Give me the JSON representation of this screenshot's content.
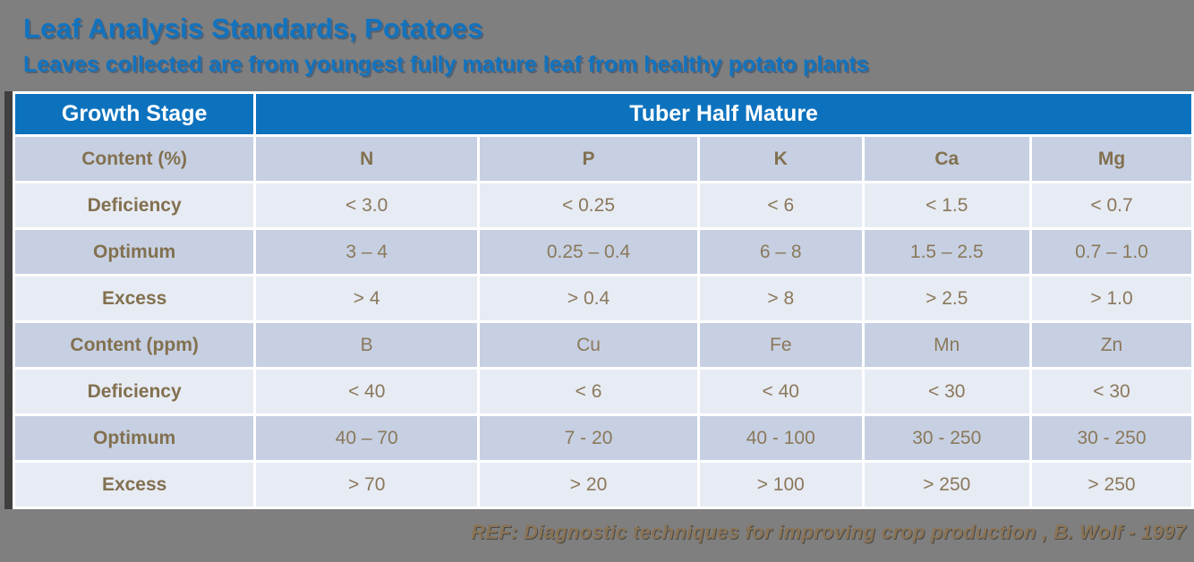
{
  "page": {
    "title": "Leaf Analysis Standards, Potatoes",
    "subtitle": "Leaves collected are from youngest fully mature leaf from healthy potato plants",
    "reference": "REF: Diagnostic techniques for improving crop production , B. Wolf - 1997"
  },
  "colors": {
    "background_gray": "#7F7F7F",
    "title_blue": "#1173BF",
    "header_blue": "#0D72BE",
    "row_medium": "#C7D0E2",
    "row_light": "#E7EBF4",
    "text_brown": "#8A785B",
    "header_text_white": "#FFFFFF",
    "table_shadow_dark": "#3F3F3F"
  },
  "table": {
    "header": {
      "growth_stage": "Growth Stage",
      "span_title": "Tuber Half Mature"
    },
    "rows": [
      {
        "label": "Content (%)",
        "values": [
          "N",
          "P",
          "K",
          "Ca",
          "Mg"
        ]
      },
      {
        "label": "Deficiency",
        "values": [
          "< 3.0",
          "< 0.25",
          "< 6",
          "< 1.5",
          "< 0.7"
        ]
      },
      {
        "label": "Optimum",
        "values": [
          "3 – 4",
          "0.25 – 0.4",
          "6 – 8",
          "1.5 – 2.5",
          "0.7 – 1.0"
        ]
      },
      {
        "label": "Excess",
        "values": [
          "> 4",
          "> 0.4",
          "> 8",
          "> 2.5",
          "> 1.0"
        ]
      },
      {
        "label": "Content (ppm)",
        "values": [
          "B",
          "Cu",
          "Fe",
          "Mn",
          "Zn"
        ]
      },
      {
        "label": "Deficiency",
        "values": [
          "< 40",
          "< 6",
          "< 40",
          "< 30",
          "< 30"
        ]
      },
      {
        "label": "Optimum",
        "values": [
          "40 – 70",
          "7 - 20",
          "40 - 100",
          "30 - 250",
          "30 - 250"
        ]
      },
      {
        "label": "Excess",
        "values": [
          "> 70",
          "> 20",
          "> 100",
          "> 250",
          "> 250"
        ]
      }
    ]
  },
  "chart_data": {
    "type": "table",
    "title": "Leaf Analysis Standards, Potatoes — Tuber Half Mature",
    "columns": [
      "Growth Stage",
      "N",
      "P",
      "K",
      "Ca",
      "Mg"
    ],
    "rows": [
      [
        "Content (%)",
        "N",
        "P",
        "K",
        "Ca",
        "Mg"
      ],
      [
        "Deficiency",
        "< 3.0",
        "< 0.25",
        "< 6",
        "< 1.5",
        "< 0.7"
      ],
      [
        "Optimum",
        "3 – 4",
        "0.25 – 0.4",
        "6 – 8",
        "1.5 – 2.5",
        "0.7 – 1.0"
      ],
      [
        "Excess",
        "> 4",
        "> 0.4",
        "> 8",
        "> 2.5",
        "> 1.0"
      ],
      [
        "Content (ppm)",
        "B",
        "Cu",
        "Fe",
        "Mn",
        "Zn"
      ],
      [
        "Deficiency",
        "< 40",
        "< 6",
        "< 40",
        "< 30",
        "< 30"
      ],
      [
        "Optimum",
        "40 – 70",
        "7 - 20",
        "40 - 100",
        "30 - 250",
        "30 - 250"
      ],
      [
        "Excess",
        "> 70",
        "> 20",
        "> 100",
        "> 250",
        "> 250"
      ]
    ]
  }
}
